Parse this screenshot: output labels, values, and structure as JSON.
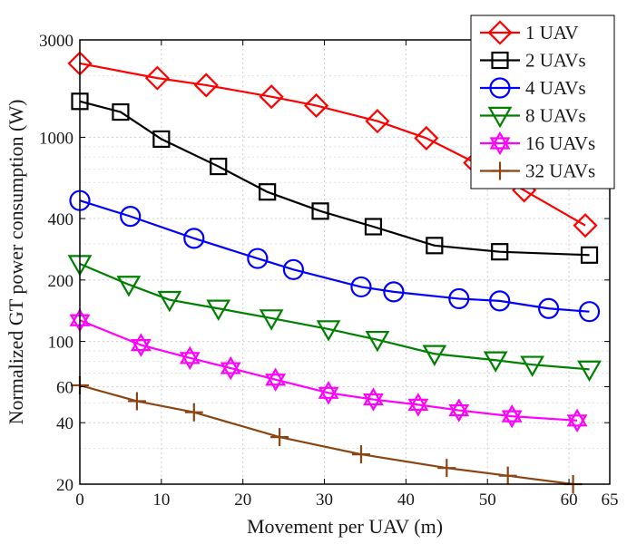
{
  "chart_data": {
    "type": "line",
    "title": "",
    "xlabel": "Movement per UAV (m)",
    "ylabel": "Normalized GT power consumption (W)",
    "x_scale": "linear",
    "y_scale": "log",
    "xlim": [
      0,
      65
    ],
    "ylim": [
      20,
      3000
    ],
    "xticks": [
      0,
      10,
      20,
      30,
      40,
      50,
      60,
      65
    ],
    "yticks": [
      20,
      40,
      60,
      100,
      200,
      400,
      1000,
      3000
    ],
    "grid": true,
    "legend_position": "top-right",
    "series": [
      {
        "name": "1 UAV",
        "color": "#ff0000",
        "marker": "diamond",
        "x": [
          0,
          9.5,
          15.5,
          23.5,
          29,
          36.5,
          42.5,
          48.5,
          54.5,
          62
        ],
        "y": [
          2300,
          1950,
          1800,
          1580,
          1430,
          1200,
          990,
          750,
          550,
          370
        ]
      },
      {
        "name": "2 UAVs",
        "color": "#000000",
        "marker": "square",
        "x": [
          0,
          5,
          10,
          17,
          23,
          29.5,
          36,
          43.5,
          51.5,
          62.5
        ],
        "y": [
          1500,
          1330,
          980,
          720,
          540,
          435,
          365,
          295,
          275,
          265
        ]
      },
      {
        "name": "4 UAVs",
        "color": "#0000ff",
        "marker": "circle",
        "x": [
          0,
          6.2,
          14,
          21.8,
          26.2,
          34.5,
          38.5,
          46.5,
          51.5,
          57.5,
          62.5
        ],
        "y": [
          490,
          410,
          320,
          255,
          225,
          185,
          175,
          162,
          158,
          145,
          140
        ]
      },
      {
        "name": "8 UAVs",
        "color": "#008000",
        "marker": "triangle-down",
        "x": [
          0,
          6,
          11,
          17,
          23.5,
          30.5,
          36.5,
          43.5,
          51,
          55.5,
          62.5
        ],
        "y": [
          240,
          190,
          160,
          145,
          130,
          115,
          102,
          87,
          81,
          77,
          73
        ]
      },
      {
        "name": "16 UAVs",
        "color": "#ff00ff",
        "marker": "hexagram",
        "x": [
          0,
          7.5,
          13.5,
          18.5,
          24,
          30.5,
          36,
          41.5,
          46.5,
          53,
          61
        ],
        "y": [
          127,
          96,
          83,
          74,
          65,
          56,
          52,
          49,
          46,
          43,
          41
        ]
      },
      {
        "name": "32 UAVs",
        "color": "#8b4513",
        "marker": "plus",
        "x": [
          0,
          7,
          14,
          24.5,
          34.5,
          45,
          52.5,
          60.5
        ],
        "y": [
          61,
          51,
          45,
          34,
          28,
          24,
          22,
          20
        ]
      }
    ]
  }
}
